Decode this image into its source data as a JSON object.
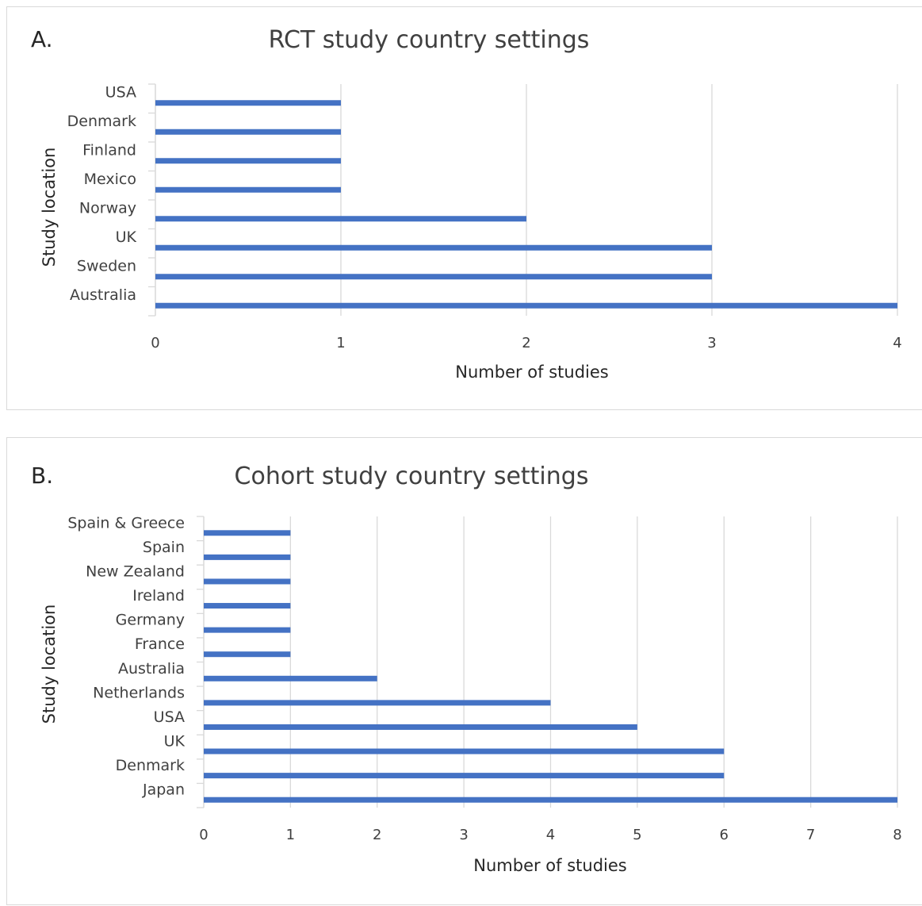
{
  "chart_data": [
    {
      "type": "bar",
      "orientation": "horizontal",
      "panel_label": "A.",
      "title": "RCT study country settings",
      "xlabel": "Number of studies",
      "ylabel": "Study location",
      "categories": [
        "USA",
        "Denmark",
        "Finland",
        "Mexico",
        "Norway",
        "UK",
        "Sweden",
        "Australia"
      ],
      "values": [
        1,
        1,
        1,
        1,
        2,
        3,
        3,
        4
      ],
      "xlim": [
        0,
        4
      ],
      "xticks": [
        "0",
        "1",
        "2",
        "3",
        "4"
      ],
      "grid": true,
      "bar_color": "#4472c4"
    },
    {
      "type": "bar",
      "orientation": "horizontal",
      "panel_label": "B.",
      "title": "Cohort study country settings",
      "xlabel": "Number of studies",
      "ylabel": "Study location",
      "categories": [
        "Spain & Greece",
        "Spain",
        "New Zealand",
        "Ireland",
        "Germany",
        "France",
        "Australia",
        "Netherlands",
        "USA",
        "UK",
        "Denmark",
        "Japan"
      ],
      "values": [
        1,
        1,
        1,
        1,
        1,
        1,
        2,
        4,
        5,
        6,
        6,
        8
      ],
      "xlim": [
        0,
        8
      ],
      "xticks": [
        "0",
        "1",
        "2",
        "3",
        "4",
        "5",
        "6",
        "7",
        "8"
      ],
      "grid": true,
      "bar_color": "#4472c4"
    }
  ]
}
